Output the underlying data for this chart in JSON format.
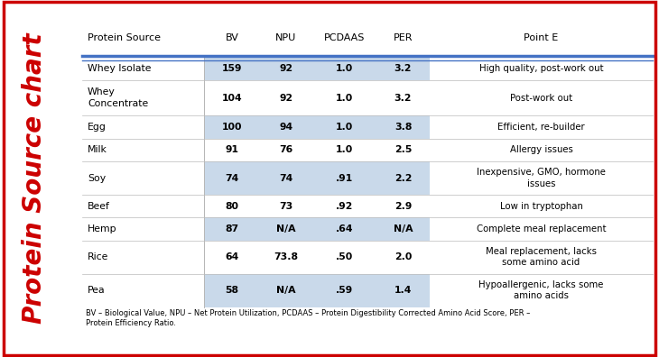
{
  "title": "Protein Source chart",
  "title_color": "#cc0000",
  "border_color": "#cc0000",
  "header_row": [
    "Protein Source",
    "BV",
    "NPU",
    "PCDAAS",
    "PER",
    "Point E"
  ],
  "header_line_color": "#4472c4",
  "rows": [
    [
      "Whey Isolate",
      "159",
      "92",
      "1.0",
      "3.2",
      "High quality, post-work out"
    ],
    [
      "Whey\nConcentrate",
      "104",
      "92",
      "1.0",
      "3.2",
      "Post-work out"
    ],
    [
      "Egg",
      "100",
      "94",
      "1.0",
      "3.8",
      "Efficient, re-builder"
    ],
    [
      "Milk",
      "91",
      "76",
      "1.0",
      "2.5",
      "Allergy issues"
    ],
    [
      "Soy",
      "74",
      "74",
      ".91",
      "2.2",
      "Inexpensive, GMO, hormone\nissues"
    ],
    [
      "Beef",
      "80",
      "73",
      ".92",
      "2.9",
      "Low in tryptophan"
    ],
    [
      "Hemp",
      "87",
      "N/A",
      ".64",
      "N/A",
      "Complete meal replacement"
    ],
    [
      "Rice",
      "64",
      "73.8",
      ".50",
      "2.0",
      "Meal replacement, lacks\nsome amino acid"
    ],
    [
      "Pea",
      "58",
      "N/A",
      ".59",
      "1.4",
      "Hypoallergenic, lacks some\namino acids"
    ]
  ],
  "shaded_rows": [
    0,
    2,
    4,
    6,
    8
  ],
  "shade_color": "#c9d9ea",
  "footnote": "BV – Biological Value, NPU – Net Protein Utilization, PCDAAS – Protein Digestibility Corrected Amino Acid Score, PER –\nProtein Efficiency Ratio.",
  "bg_color": "#ffffff",
  "header_fontsize": 8,
  "data_fontsize": 7.8,
  "footnote_fontsize": 6.0,
  "title_fontsize": 20,
  "row_heights_rel": [
    1.0,
    1.55,
    1.0,
    1.0,
    1.45,
    1.0,
    1.0,
    1.45,
    1.45
  ]
}
